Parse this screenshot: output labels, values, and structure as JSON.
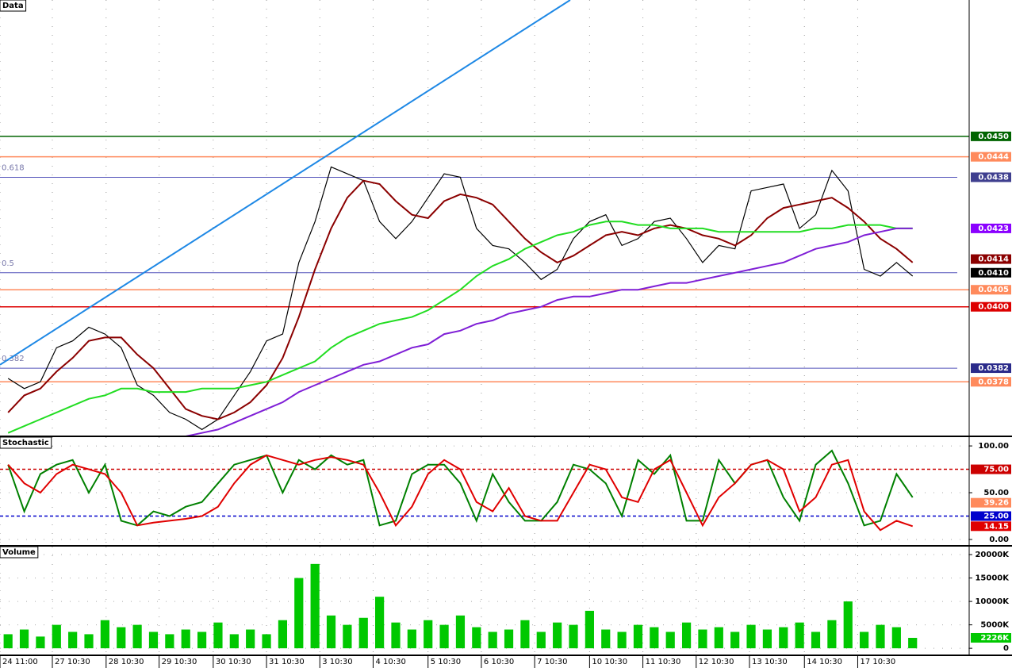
{
  "chart_data": [
    {
      "type": "line",
      "title": "Data",
      "xlim": [
        0,
        60
      ],
      "ylim": [
        0.0362,
        0.049
      ],
      "grid": true,
      "series": [
        {
          "color": "#000000",
          "values": [
            0.0379,
            0.0376,
            0.0378,
            0.0388,
            0.039,
            0.0394,
            0.0392,
            0.0388,
            0.0377,
            0.0374,
            0.0369,
            0.0367,
            0.0364,
            0.0367,
            0.0374,
            0.0381,
            0.039,
            0.0392,
            0.0413,
            0.0425,
            0.0441,
            0.0439,
            0.0437,
            0.0425,
            0.042,
            0.0425,
            0.0432,
            0.0439,
            0.0438,
            0.0423,
            0.0418,
            0.0417,
            0.0413,
            0.0408,
            0.0411,
            0.042,
            0.0425,
            0.0427,
            0.0418,
            0.042,
            0.0425,
            0.0426,
            0.042,
            0.0413,
            0.0418,
            0.0417,
            0.0434,
            0.0435,
            0.0436,
            0.0423,
            0.0427,
            0.044,
            0.0434,
            0.0411,
            0.0409,
            0.0413,
            0.0409
          ]
        },
        {
          "color": "#8b0000",
          "values": [
            0.0369,
            0.0374,
            0.0376,
            0.0381,
            0.0385,
            0.039,
            0.0391,
            0.0391,
            0.0386,
            0.0382,
            0.0376,
            0.037,
            0.0368,
            0.0367,
            0.0369,
            0.0372,
            0.0377,
            0.0385,
            0.0397,
            0.0411,
            0.0423,
            0.0432,
            0.0437,
            0.0436,
            0.0431,
            0.0427,
            0.0426,
            0.0431,
            0.0433,
            0.0432,
            0.043,
            0.0425,
            0.042,
            0.0416,
            0.0413,
            0.0415,
            0.0418,
            0.0421,
            0.0422,
            0.0421,
            0.0423,
            0.0424,
            0.0423,
            0.0421,
            0.042,
            0.0418,
            0.0421,
            0.0426,
            0.0429,
            0.043,
            0.0431,
            0.0432,
            0.0429,
            0.0425,
            0.042,
            0.0417,
            0.0413
          ]
        },
        {
          "color": "#22dd22",
          "values": [
            0.0363,
            0.0365,
            0.0367,
            0.0369,
            0.0371,
            0.0373,
            0.0374,
            0.0376,
            0.0376,
            0.0375,
            0.0375,
            0.0375,
            0.0376,
            0.0376,
            0.0376,
            0.0377,
            0.0378,
            0.038,
            0.0382,
            0.0384,
            0.0388,
            0.0391,
            0.0393,
            0.0395,
            0.0396,
            0.0397,
            0.0399,
            0.0402,
            0.0405,
            0.0409,
            0.0412,
            0.0414,
            0.0417,
            0.0419,
            0.0421,
            0.0422,
            0.0424,
            0.0425,
            0.0425,
            0.0424,
            0.0424,
            0.0423,
            0.0423,
            0.0423,
            0.0422,
            0.0422,
            0.0422,
            0.0422,
            0.0422,
            0.0422,
            0.0423,
            0.0423,
            0.0424,
            0.0424,
            0.0424,
            0.0423,
            0.0423
          ]
        },
        {
          "color": "#7f1fd6",
          "values": [
            null,
            null,
            null,
            null,
            null,
            null,
            null,
            null,
            null,
            null,
            null,
            0.0362,
            0.0363,
            0.0364,
            0.0366,
            0.0368,
            0.037,
            0.0372,
            0.0375,
            0.0377,
            0.0379,
            0.0381,
            0.0383,
            0.0384,
            0.0386,
            0.0388,
            0.0389,
            0.0392,
            0.0393,
            0.0395,
            0.0396,
            0.0398,
            0.0399,
            0.04,
            0.0402,
            0.0403,
            0.0403,
            0.0404,
            0.0405,
            0.0405,
            0.0406,
            0.0407,
            0.0407,
            0.0408,
            0.0409,
            0.041,
            0.0411,
            0.0412,
            0.0413,
            0.0415,
            0.0417,
            0.0418,
            0.0419,
            0.0421,
            0.0422,
            0.0423,
            0.0423
          ]
        }
      ],
      "trendline": {
        "color": "#1e88e5",
        "x": [
          0,
          35.3
        ],
        "y": [
          0.0383,
          0.049
        ]
      },
      "fib": [
        {
          "ratio": 0.618,
          "value": 0.0438
        },
        {
          "ratio": 0.5,
          "value": 0.041
        },
        {
          "ratio": 0.382,
          "value": 0.0382
        }
      ],
      "levels": [
        {
          "value": 0.045,
          "label": "0.0450",
          "color": "#006400",
          "line": true
        },
        {
          "value": 0.0444,
          "label": "0.0444",
          "color": "#ff8a5c",
          "line": true
        },
        {
          "value": 0.0438,
          "label": "0.0438",
          "color": "#3f3f8f",
          "line": false
        },
        {
          "value": 0.0423,
          "label": "0.0423",
          "color": "#8a00ff",
          "line": false
        },
        {
          "value": 0.0414,
          "label": "0.0414",
          "color": "#8b0000",
          "line": false
        },
        {
          "value": 0.041,
          "label": "0.0410",
          "color": "#000000",
          "line": false
        },
        {
          "value": 0.0405,
          "label": "0.0405",
          "color": "#ff8a5c",
          "line": true
        },
        {
          "value": 0.04,
          "label": "0.0400",
          "color": "#dd0000",
          "line": true
        },
        {
          "value": 0.0382,
          "label": "0.0382",
          "color": "#2a2a8a",
          "line": false
        },
        {
          "value": 0.0378,
          "label": "0.0378",
          "color": "#ff8a5c",
          "line": true
        }
      ]
    },
    {
      "type": "line",
      "title": "Stochastic",
      "xlim": [
        0,
        60
      ],
      "ylim": [
        -6.8,
        109.4
      ],
      "grid": true,
      "yticks": [
        {
          "value": 100,
          "label": "100.00"
        },
        {
          "value": 50,
          "label": "50.00"
        },
        {
          "value": 0,
          "label": "0.00"
        }
      ],
      "series": [
        {
          "color": "#008000",
          "values": [
            80,
            30,
            70,
            80,
            85,
            50,
            80,
            20,
            15,
            30,
            25,
            35,
            40,
            60,
            80,
            85,
            90,
            50,
            85,
            75,
            90,
            80,
            85,
            15,
            20,
            70,
            80,
            80,
            60,
            20,
            70,
            40,
            20,
            20,
            40,
            80,
            75,
            60,
            25,
            85,
            70,
            90,
            20,
            20,
            85,
            60,
            80,
            85,
            45,
            20,
            80,
            95,
            60,
            15,
            20,
            70,
            45
          ]
        },
        {
          "color": "#e00000",
          "values": [
            80,
            60,
            50,
            70,
            80,
            75,
            70,
            50,
            15,
            18,
            20,
            22,
            25,
            35,
            60,
            80,
            90,
            85,
            80,
            85,
            88,
            85,
            80,
            50,
            15,
            35,
            70,
            85,
            75,
            40,
            30,
            55,
            25,
            20,
            20,
            50,
            80,
            75,
            45,
            40,
            75,
            85,
            50,
            15,
            45,
            60,
            80,
            85,
            75,
            30,
            45,
            80,
            85,
            30,
            10,
            20,
            14.15
          ]
        }
      ],
      "levels": [
        {
          "value": 75,
          "label": "75.00",
          "color": "#cc0000",
          "line": true,
          "dash": true
        },
        {
          "value": 39.26,
          "label": "39.26",
          "color": "#ff8a5c",
          "line": false
        },
        {
          "value": 25,
          "label": "25.00",
          "color": "#0000cc",
          "line": true,
          "dash": true
        },
        {
          "value": 14.15,
          "label": "14.15",
          "color": "#e00000",
          "line": false
        }
      ]
    },
    {
      "type": "bar",
      "title": "Volume",
      "xlim": [
        0,
        60
      ],
      "ylim": [
        -1500,
        21700
      ],
      "grid": true,
      "color": "#00c800",
      "yticks": [
        {
          "value": 20000,
          "label": "20000K"
        },
        {
          "value": 15000,
          "label": "15000K"
        },
        {
          "value": 10000,
          "label": "10000K"
        },
        {
          "value": 5000,
          "label": "5000K"
        },
        0
      ],
      "values": [
        3000,
        4000,
        2500,
        5000,
        3500,
        3000,
        6000,
        4500,
        5000,
        3500,
        3000,
        4000,
        3500,
        5500,
        3000,
        4000,
        3000,
        6000,
        15000,
        18000,
        7000,
        5000,
        6500,
        11000,
        5500,
        4000,
        6000,
        5000,
        7000,
        4500,
        3500,
        4000,
        6000,
        3500,
        5500,
        5000,
        8000,
        4000,
        3500,
        5000,
        4500,
        3500,
        5500,
        4000,
        4500,
        3500,
        5000,
        4000,
        4500,
        5500,
        3500,
        6000,
        10000,
        3500,
        5000,
        4500,
        2226
      ],
      "levels": [
        {
          "value": 2226,
          "label": "2226K",
          "color": "#00c800",
          "line": false
        }
      ],
      "xticks": [
        {
          "value": 0,
          "label": "24 11:00"
        },
        {
          "value": 3.24,
          "label": "27 10:30"
        },
        {
          "value": 6.57,
          "label": "28 10:30"
        },
        {
          "value": 9.85,
          "label": "29 10:30"
        },
        {
          "value": 13.2,
          "label": "30 10:30"
        },
        {
          "value": 16.5,
          "label": "31 10:30"
        },
        {
          "value": 19.8,
          "label": "3 10:30"
        },
        {
          "value": 23.1,
          "label": "4 10:30"
        },
        {
          "value": 26.5,
          "label": "5 10:30"
        },
        {
          "value": 29.8,
          "label": "6 10:30"
        },
        {
          "value": 33.1,
          "label": "7 10:30"
        },
        {
          "value": 36.5,
          "label": "10 10:30"
        },
        {
          "value": 39.8,
          "label": "11 10:30"
        },
        {
          "value": 43.1,
          "label": "12 10:30"
        },
        {
          "value": 46.4,
          "label": "13 10:30"
        },
        {
          "value": 49.8,
          "label": "14 10:30"
        },
        {
          "value": 53.1,
          "label": "17 10:30"
        }
      ]
    }
  ]
}
